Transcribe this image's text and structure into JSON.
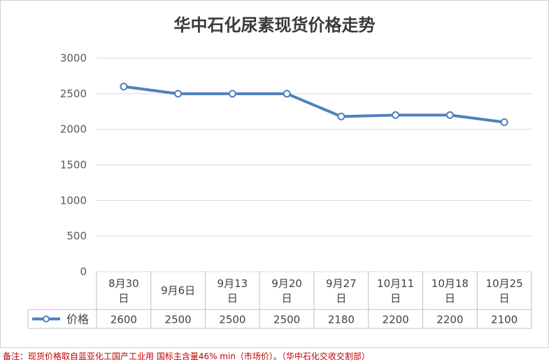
{
  "chart_data": {
    "type": "line",
    "title": "华中石化尿素现货价格走势",
    "categories": [
      "8月30日",
      "9月6日",
      "9月13日",
      "9月20日",
      "9月27日",
      "10月11日",
      "10月18日",
      "10月25日"
    ],
    "series": [
      {
        "name": "价格",
        "values": [
          2600,
          2500,
          2500,
          2500,
          2180,
          2200,
          2200,
          2100
        ],
        "color": "#4f81bd"
      }
    ],
    "ylim": [
      0,
      3000
    ],
    "yticks": [
      0,
      500,
      1000,
      1500,
      2000,
      2500,
      3000
    ],
    "grid": true,
    "data_table": true,
    "legend": "data-table-left"
  },
  "footnote": "备注：现货价格取自蓝亚化工国产工业用 国标主含量46% min（市场价）。（华中石化交收交割部）"
}
